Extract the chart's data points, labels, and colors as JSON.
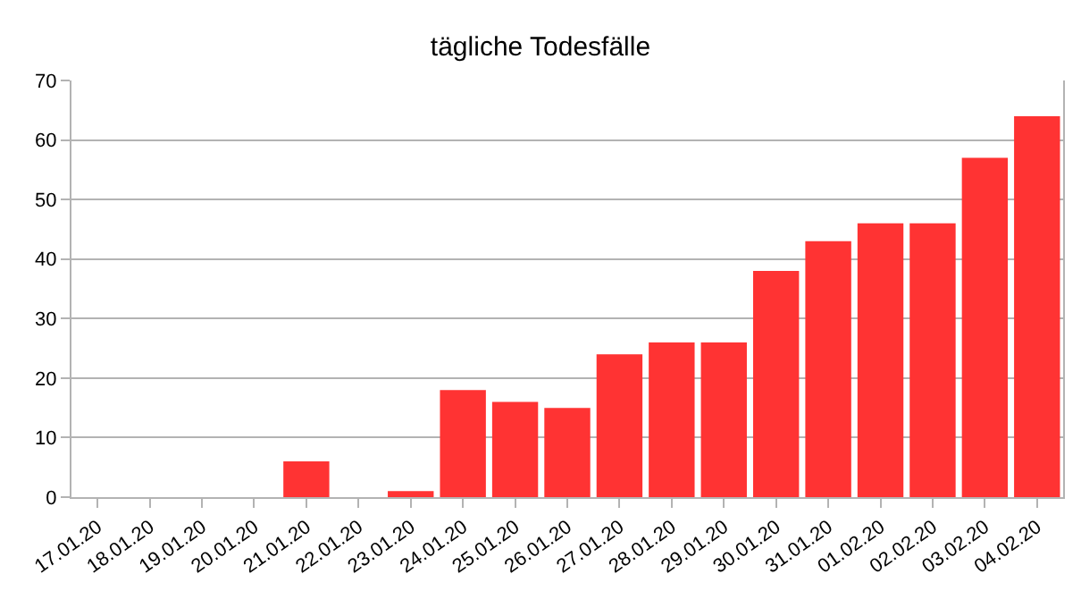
{
  "chart_data": {
    "type": "bar",
    "title": "tägliche Todesfälle",
    "categories": [
      "17.01.20",
      "18.01.20",
      "19.01.20",
      "20.01.20",
      "21.01.20",
      "22.01.20",
      "23.01.20",
      "24.01.20",
      "25.01.20",
      "26.01.20",
      "27.01.20",
      "28.01.20",
      "29.01.20",
      "30.01.20",
      "31.01.20",
      "01.02.20",
      "02.02.20",
      "03.02.20",
      "04.02.20"
    ],
    "values": [
      0,
      0,
      0,
      0,
      6,
      0,
      1,
      18,
      16,
      15,
      24,
      26,
      26,
      38,
      43,
      46,
      46,
      57,
      64
    ],
    "color": "#ff3333",
    "ylim": [
      0,
      70
    ],
    "yticks": [
      0,
      10,
      20,
      30,
      40,
      50,
      60,
      70
    ],
    "grid": "y"
  }
}
